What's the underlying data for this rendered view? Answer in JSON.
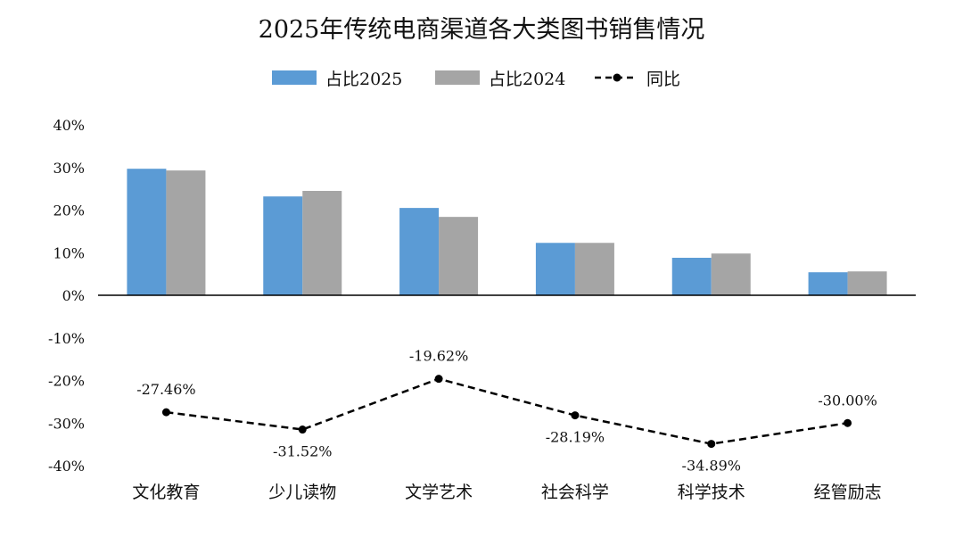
{
  "chart_data": {
    "type": "bar",
    "title": "2025年传统电商渠道各大类图书销售情况",
    "categories": [
      "文化教育",
      "少儿读物",
      "文学艺术",
      "社会科学",
      "科学技术",
      "经管励志"
    ],
    "series": [
      {
        "name": "占比2025",
        "type": "bar",
        "color": "#5B9BD5",
        "values": [
          29.7,
          23.2,
          20.5,
          12.3,
          8.8,
          5.4
        ]
      },
      {
        "name": "占比2024",
        "type": "bar",
        "color": "#A5A5A5",
        "values": [
          29.3,
          24.5,
          18.4,
          12.3,
          9.8,
          5.6
        ]
      },
      {
        "name": "同比",
        "type": "line",
        "style": "dashed",
        "marker": "circle",
        "color": "#000000",
        "values": [
          -27.46,
          -31.52,
          -19.62,
          -28.19,
          -34.89,
          -30.0
        ],
        "labels": [
          "-27.46%",
          "-31.52%",
          "-19.62%",
          "-28.19%",
          "-34.89%",
          "-30.00%"
        ],
        "label_positions": [
          "above",
          "below",
          "above",
          "below",
          "below",
          "above"
        ]
      }
    ],
    "ylim": [
      -40,
      40
    ],
    "yticks": [
      40,
      30,
      20,
      10,
      0,
      -10,
      -20,
      -30,
      -40
    ],
    "ytick_labels": [
      "40%",
      "30%",
      "20%",
      "10%",
      "0%",
      "-10%",
      "-20%",
      "-30%",
      "-40%"
    ],
    "grid": false,
    "legend": "top"
  }
}
